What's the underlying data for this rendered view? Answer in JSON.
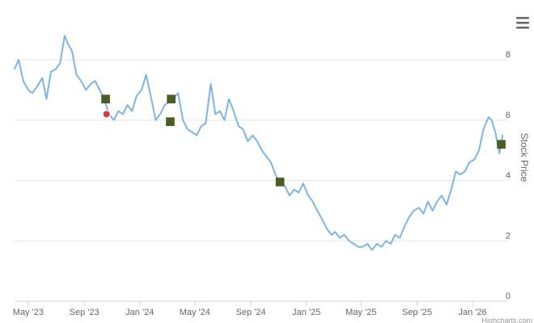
{
  "chart_data": {
    "type": "line",
    "title": "",
    "xlabel": "",
    "ylabel": "Stock Price",
    "ylim": [
      0,
      9.5
    ],
    "yticks": [
      0,
      2,
      4,
      6,
      8
    ],
    "xticks": [
      {
        "label": "May '23",
        "date": "2023-05-01"
      },
      {
        "label": "Sep '23",
        "date": "2023-09-01"
      },
      {
        "label": "Jan '24",
        "date": "2024-01-01"
      },
      {
        "label": "May '24",
        "date": "2024-05-01"
      },
      {
        "label": "Sep '24",
        "date": "2024-09-01"
      },
      {
        "label": "Jan '25",
        "date": "2025-01-01"
      },
      {
        "label": "May '25",
        "date": "2025-05-01"
      },
      {
        "label": "Sep '25",
        "date": "2025-09-01"
      },
      {
        "label": "Jan '26",
        "date": "2026-01-01"
      }
    ],
    "xrange": [
      "2023-04-01",
      "2026-03-20"
    ],
    "grid": true,
    "y_axis_side": "right",
    "line_color": "#7cb5ec",
    "series": [
      {
        "points": [
          [
            "2023-04-01",
            7.7
          ],
          [
            "2023-04-10",
            8.0
          ],
          [
            "2023-04-20",
            7.3
          ],
          [
            "2023-05-01",
            7.0
          ],
          [
            "2023-05-10",
            6.9
          ],
          [
            "2023-05-20",
            7.1
          ],
          [
            "2023-06-01",
            7.4
          ],
          [
            "2023-06-10",
            6.7
          ],
          [
            "2023-06-20",
            7.6
          ],
          [
            "2023-07-01",
            7.7
          ],
          [
            "2023-07-10",
            7.9
          ],
          [
            "2023-07-20",
            8.8
          ],
          [
            "2023-07-28",
            8.5
          ],
          [
            "2023-08-05",
            8.3
          ],
          [
            "2023-08-15",
            7.5
          ],
          [
            "2023-08-25",
            7.3
          ],
          [
            "2023-09-05",
            7.0
          ],
          [
            "2023-09-15",
            7.2
          ],
          [
            "2023-09-25",
            7.3
          ],
          [
            "2023-10-05",
            7.0
          ],
          [
            "2023-10-15",
            6.7
          ],
          [
            "2023-10-25",
            6.2
          ],
          [
            "2023-11-05",
            6.0
          ],
          [
            "2023-11-15",
            6.3
          ],
          [
            "2023-11-25",
            6.2
          ],
          [
            "2023-12-05",
            6.5
          ],
          [
            "2023-12-15",
            6.3
          ],
          [
            "2023-12-25",
            6.8
          ],
          [
            "2024-01-05",
            7.0
          ],
          [
            "2024-01-15",
            7.5
          ],
          [
            "2024-01-25",
            6.8
          ],
          [
            "2024-02-05",
            6.0
          ],
          [
            "2024-02-15",
            6.2
          ],
          [
            "2024-02-25",
            6.5
          ],
          [
            "2024-03-05",
            6.6
          ],
          [
            "2024-03-15",
            6.7
          ],
          [
            "2024-03-25",
            6.9
          ],
          [
            "2024-04-05",
            6.0
          ],
          [
            "2024-04-15",
            5.7
          ],
          [
            "2024-04-25",
            5.6
          ],
          [
            "2024-05-05",
            5.5
          ],
          [
            "2024-05-15",
            5.8
          ],
          [
            "2024-05-25",
            5.9
          ],
          [
            "2024-06-05",
            7.2
          ],
          [
            "2024-06-15",
            6.2
          ],
          [
            "2024-06-25",
            6.3
          ],
          [
            "2024-07-05",
            6.0
          ],
          [
            "2024-07-15",
            6.7
          ],
          [
            "2024-07-25",
            6.3
          ],
          [
            "2024-08-05",
            5.8
          ],
          [
            "2024-08-15",
            5.7
          ],
          [
            "2024-08-25",
            5.3
          ],
          [
            "2024-09-05",
            5.5
          ],
          [
            "2024-09-15",
            5.3
          ],
          [
            "2024-09-25",
            5.0
          ],
          [
            "2024-10-05",
            4.8
          ],
          [
            "2024-10-15",
            4.6
          ],
          [
            "2024-10-25",
            4.2
          ],
          [
            "2024-11-05",
            3.9
          ],
          [
            "2024-11-15",
            3.8
          ],
          [
            "2024-11-25",
            3.5
          ],
          [
            "2024-12-05",
            3.7
          ],
          [
            "2024-12-15",
            3.6
          ],
          [
            "2024-12-25",
            3.9
          ],
          [
            "2025-01-05",
            3.5
          ],
          [
            "2025-01-15",
            3.3
          ],
          [
            "2025-01-25",
            3.0
          ],
          [
            "2025-02-05",
            2.7
          ],
          [
            "2025-02-15",
            2.4
          ],
          [
            "2025-02-25",
            2.2
          ],
          [
            "2025-03-05",
            2.3
          ],
          [
            "2025-03-15",
            2.1
          ],
          [
            "2025-03-25",
            2.2
          ],
          [
            "2025-04-05",
            2.0
          ],
          [
            "2025-04-15",
            1.9
          ],
          [
            "2025-04-25",
            1.8
          ],
          [
            "2025-05-05",
            1.8
          ],
          [
            "2025-05-15",
            1.9
          ],
          [
            "2025-05-25",
            1.7
          ],
          [
            "2025-06-05",
            1.9
          ],
          [
            "2025-06-15",
            1.8
          ],
          [
            "2025-06-25",
            2.0
          ],
          [
            "2025-07-05",
            1.9
          ],
          [
            "2025-07-15",
            2.2
          ],
          [
            "2025-07-25",
            2.1
          ],
          [
            "2025-08-05",
            2.5
          ],
          [
            "2025-08-15",
            2.8
          ],
          [
            "2025-08-25",
            3.0
          ],
          [
            "2025-09-05",
            3.1
          ],
          [
            "2025-09-15",
            2.9
          ],
          [
            "2025-09-25",
            3.3
          ],
          [
            "2025-10-05",
            3.0
          ],
          [
            "2025-10-15",
            3.3
          ],
          [
            "2025-10-25",
            3.5
          ],
          [
            "2025-11-05",
            3.2
          ],
          [
            "2025-11-15",
            3.7
          ],
          [
            "2025-11-25",
            4.3
          ],
          [
            "2025-12-05",
            4.2
          ],
          [
            "2025-12-15",
            4.3
          ],
          [
            "2025-12-25",
            4.6
          ],
          [
            "2026-01-05",
            4.7
          ],
          [
            "2026-01-15",
            5.0
          ],
          [
            "2026-01-25",
            5.7
          ],
          [
            "2026-02-05",
            6.1
          ],
          [
            "2026-02-12",
            6.0
          ],
          [
            "2026-02-20",
            5.6
          ],
          [
            "2026-03-01",
            4.9
          ],
          [
            "2026-03-08",
            5.5
          ]
        ]
      }
    ],
    "markers": [
      {
        "date": "2023-10-18",
        "value": 6.7,
        "shape": "square",
        "color": "#4b5e1f"
      },
      {
        "date": "2023-10-20",
        "value": 6.2,
        "shape": "circle",
        "color": "#d33c3c"
      },
      {
        "date": "2024-03-10",
        "value": 6.7,
        "shape": "square",
        "color": "#4b5e1f"
      },
      {
        "date": "2024-03-08",
        "value": 5.95,
        "shape": "square",
        "color": "#4b5e1f"
      },
      {
        "date": "2024-11-04",
        "value": 3.95,
        "shape": "square",
        "color": "#4b5e1f"
      },
      {
        "date": "2026-03-05",
        "value": 5.2,
        "shape": "square",
        "color": "#4b5e1f"
      }
    ]
  },
  "credits": "Highcharts.com",
  "menu_icon": "hamburger-menu-icon"
}
